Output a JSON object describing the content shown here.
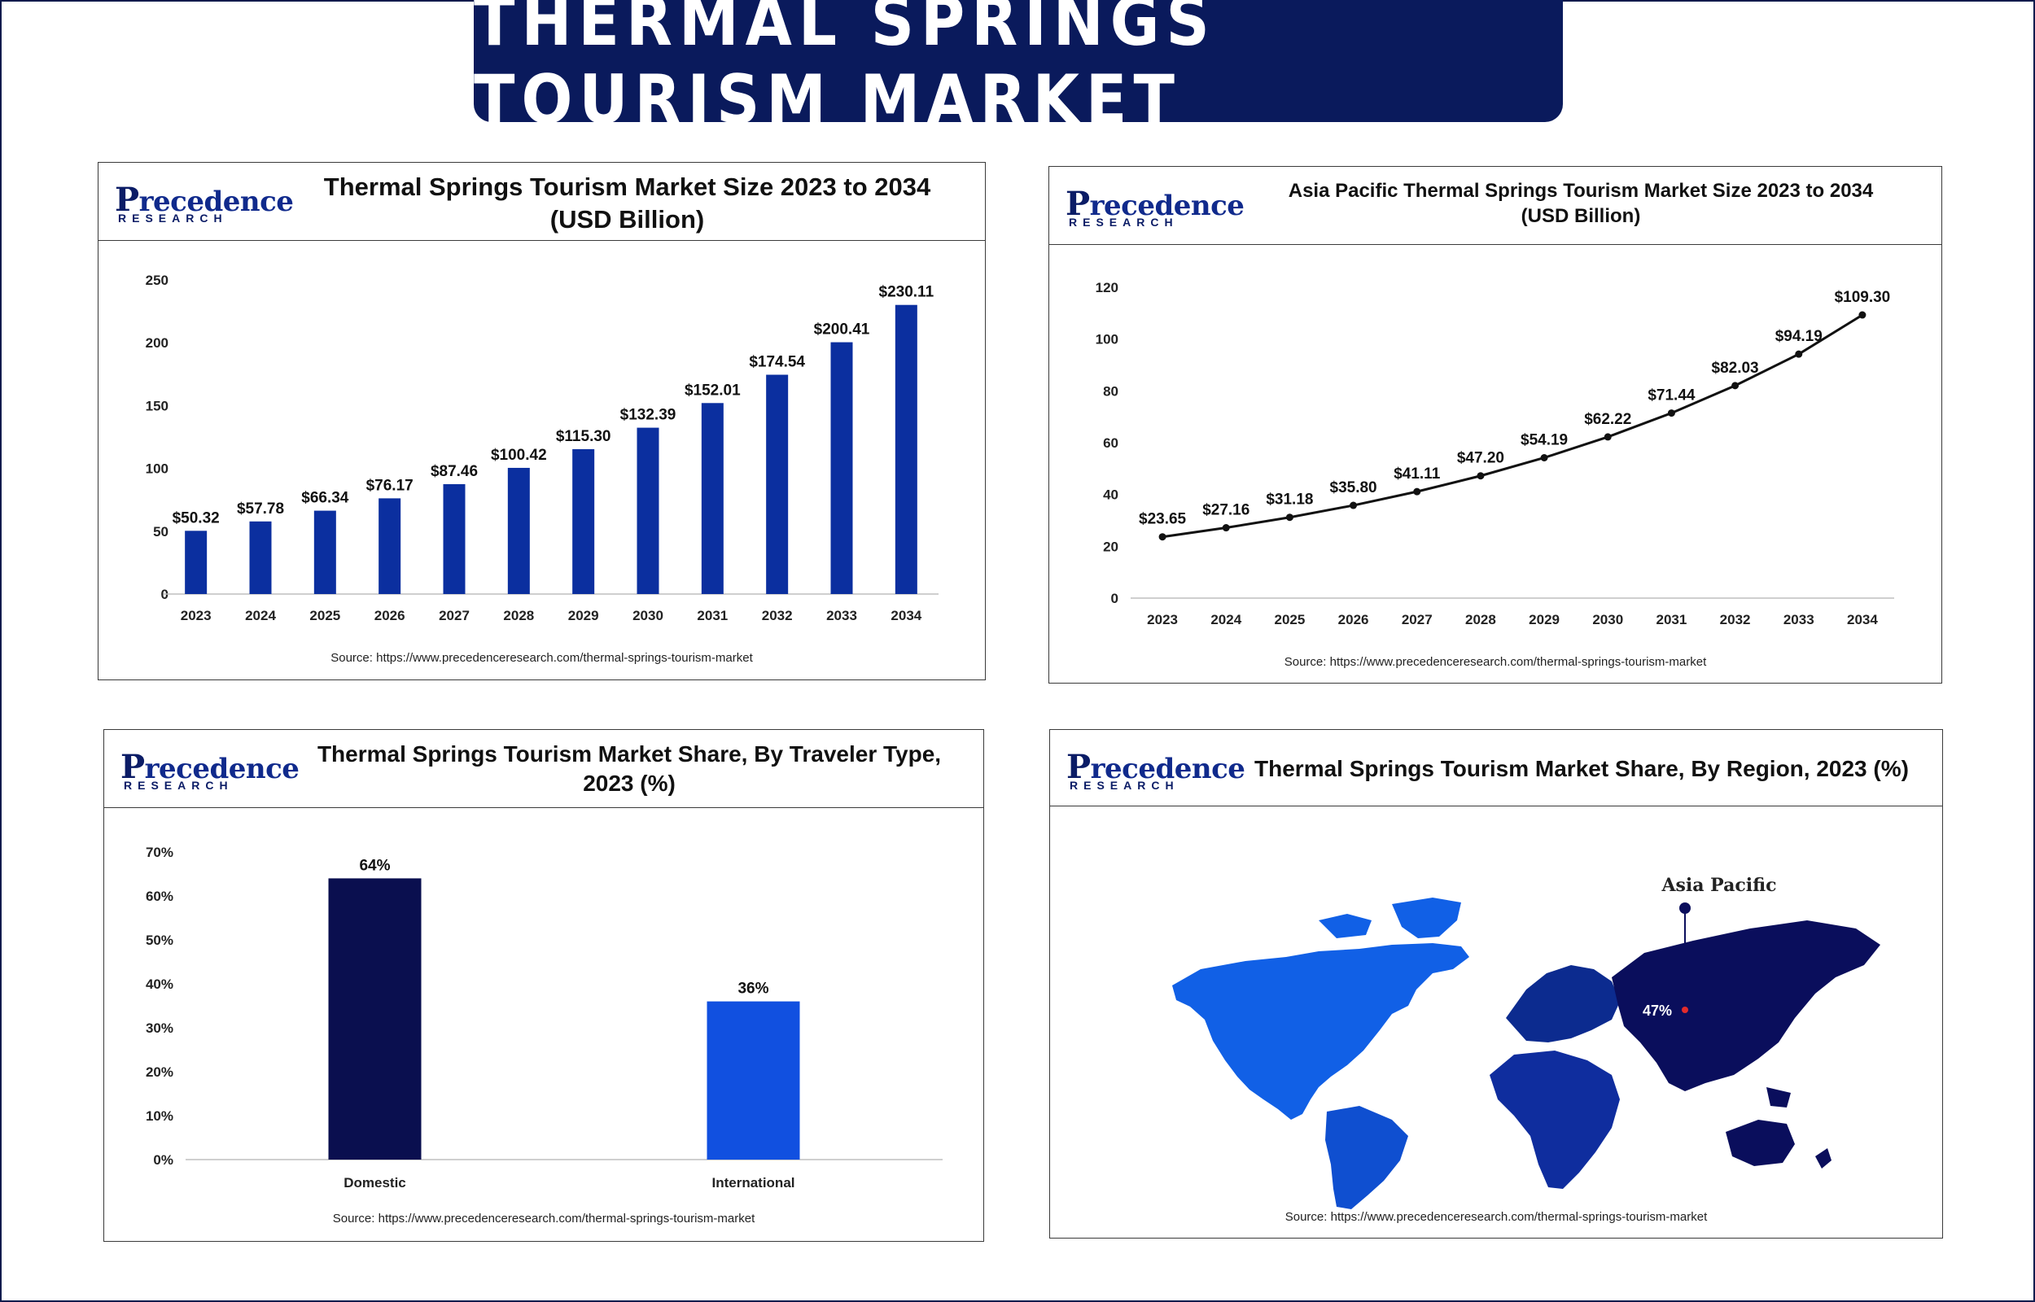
{
  "banner": {
    "title": "THERMAL SPRINGS TOURISM MARKET"
  },
  "logo": {
    "line1_initial": "P",
    "line1_rest": "recedence",
    "line2": "RESEARCH"
  },
  "colors": {
    "navy": "#0a1a5c",
    "bar_blue": "#0b2f9f",
    "domestic": "#0a0f4f",
    "international": "#1150e0",
    "line": "#111111"
  },
  "chart_data": [
    {
      "type": "bar",
      "title": "Thermal Springs Tourism Market Size 2023 to 2034",
      "subtitle": "(USD Billion)",
      "categories": [
        "2023",
        "2024",
        "2025",
        "2026",
        "2027",
        "2028",
        "2029",
        "2030",
        "2031",
        "2032",
        "2033",
        "2034"
      ],
      "values": [
        50.32,
        57.78,
        66.34,
        76.17,
        87.46,
        100.42,
        115.3,
        132.39,
        152.01,
        174.54,
        200.41,
        230.11
      ],
      "data_labels": [
        "$50.32",
        "$57.78",
        "$66.34",
        "$76.17",
        "$87.46",
        "$100.42",
        "$115.30",
        "$132.39",
        "$152.01",
        "$174.54",
        "$200.41",
        "$230.11"
      ],
      "ylim": [
        0,
        250
      ],
      "yticks": [
        "0",
        "50",
        "100",
        "150",
        "200",
        "250"
      ],
      "grid": false,
      "source": "Source: https://www.precedenceresearch.com/thermal-springs-tourism-market"
    },
    {
      "type": "line",
      "title": "Asia Pacific Thermal Springs Tourism Market Size 2023 to 2034",
      "subtitle": "(USD Billion)",
      "categories": [
        "2023",
        "2024",
        "2025",
        "2026",
        "2027",
        "2028",
        "2029",
        "2030",
        "2031",
        "2032",
        "2033",
        "2034"
      ],
      "values": [
        23.65,
        27.16,
        31.18,
        35.8,
        41.11,
        47.2,
        54.19,
        62.22,
        71.44,
        82.03,
        94.19,
        109.3
      ],
      "data_labels": [
        "$23.65",
        "$27.16",
        "$31.18",
        "$35.80",
        "$41.11",
        "$47.20",
        "$54.19",
        "$62.22",
        "$71.44",
        "$82.03",
        "$94.19",
        "$109.30"
      ],
      "ylim": [
        0,
        120
      ],
      "yticks": [
        "0",
        "20",
        "40",
        "60",
        "80",
        "100",
        "120"
      ],
      "grid": false,
      "source": "Source: https://www.precedenceresearch.com/thermal-springs-tourism-market"
    },
    {
      "type": "bar",
      "title": "Thermal Springs Tourism  Market Share, By Traveler Type,",
      "subtitle": "2023 (%)",
      "categories": [
        "Domestic",
        "International"
      ],
      "values": [
        64,
        36
      ],
      "data_labels": [
        "64%",
        "36%"
      ],
      "ylim": [
        0,
        70
      ],
      "yticks": [
        "0%",
        "10%",
        "20%",
        "30%",
        "40%",
        "50%",
        "60%",
        "70%"
      ],
      "grid": false,
      "source": "Source: https://www.precedenceresearch.com/thermal-springs-tourism-market"
    },
    {
      "type": "map",
      "title": "Thermal Springs Tourism Market Share, By Region, 2023 (%)",
      "highlight_region": "Asia Pacific",
      "highlight_value": 47,
      "highlight_label": "47%",
      "source": "Source: https://www.precedenceresearch.com/thermal-springs-tourism-market"
    }
  ]
}
